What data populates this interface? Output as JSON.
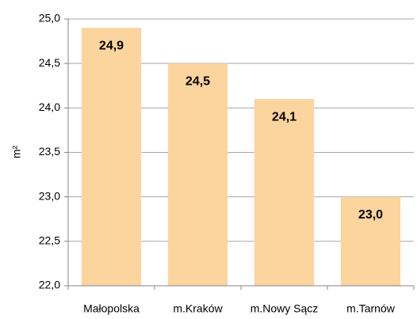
{
  "chart_data": {
    "type": "bar",
    "y_axis_label": "m²",
    "categories": [
      "Małopolska",
      "m.Kraków",
      "m.Nowy Sącz",
      "m.Tarnów"
    ],
    "values": [
      24.9,
      24.5,
      24.1,
      23.0
    ],
    "value_labels": [
      "24,9",
      "24,5",
      "24,1",
      "23,0"
    ],
    "color": "#fcd49e",
    "ylim": [
      22.0,
      25.0
    ],
    "yticks": [
      {
        "value": 22.0,
        "label": "22,0"
      },
      {
        "value": 22.5,
        "label": "22,5"
      },
      {
        "value": 23.0,
        "label": "23,0"
      },
      {
        "value": 23.5,
        "label": "23,5"
      },
      {
        "value": 24.0,
        "label": "24,0"
      },
      {
        "value": 24.5,
        "label": "24,5"
      },
      {
        "value": 25.0,
        "label": "25,0"
      }
    ],
    "grid": true
  }
}
